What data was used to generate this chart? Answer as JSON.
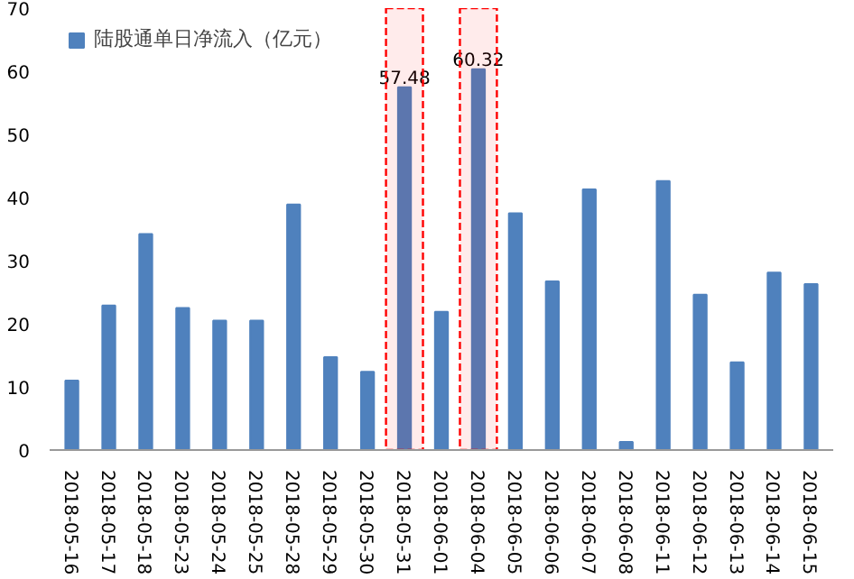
{
  "chart_data": {
    "type": "bar",
    "categories": [
      "2018-05-16",
      "2018-05-17",
      "2018-05-18",
      "2018-05-23",
      "2018-05-24",
      "2018-05-25",
      "2018-05-28",
      "2018-05-29",
      "2018-05-30",
      "2018-05-31",
      "2018-06-01",
      "2018-06-04",
      "2018-06-05",
      "2018-06-06",
      "2018-06-07",
      "2018-06-08",
      "2018-06-11",
      "2018-06-12",
      "2018-06-13",
      "2018-06-14",
      "2018-06-15"
    ],
    "series": [
      {
        "name": "陆股通单日净流入（亿元）",
        "color": "#4f81bd",
        "values": [
          11.0,
          22.9,
          34.2,
          22.5,
          20.5,
          20.5,
          38.9,
          14.7,
          12.4,
          57.48,
          21.9,
          60.32,
          37.5,
          26.7,
          41.3,
          1.3,
          42.6,
          24.6,
          13.9,
          28.1,
          26.3
        ],
        "value_labels": [
          null,
          null,
          null,
          null,
          null,
          null,
          null,
          null,
          null,
          "57.48",
          null,
          "60.32",
          null,
          null,
          null,
          null,
          null,
          null,
          null,
          null,
          null
        ]
      }
    ],
    "ylim": [
      0,
      70
    ],
    "yticks": [
      0,
      10,
      20,
      30,
      40,
      50,
      60,
      70
    ],
    "bands": [
      {
        "axis": "x",
        "from": "2018-05-31",
        "to": "2018-05-31",
        "color": "#ff0000"
      },
      {
        "axis": "x",
        "from": "2018-06-04",
        "to": "2018-06-04",
        "color": "#ff0000"
      }
    ],
    "grid": false,
    "legend": "top left"
  }
}
